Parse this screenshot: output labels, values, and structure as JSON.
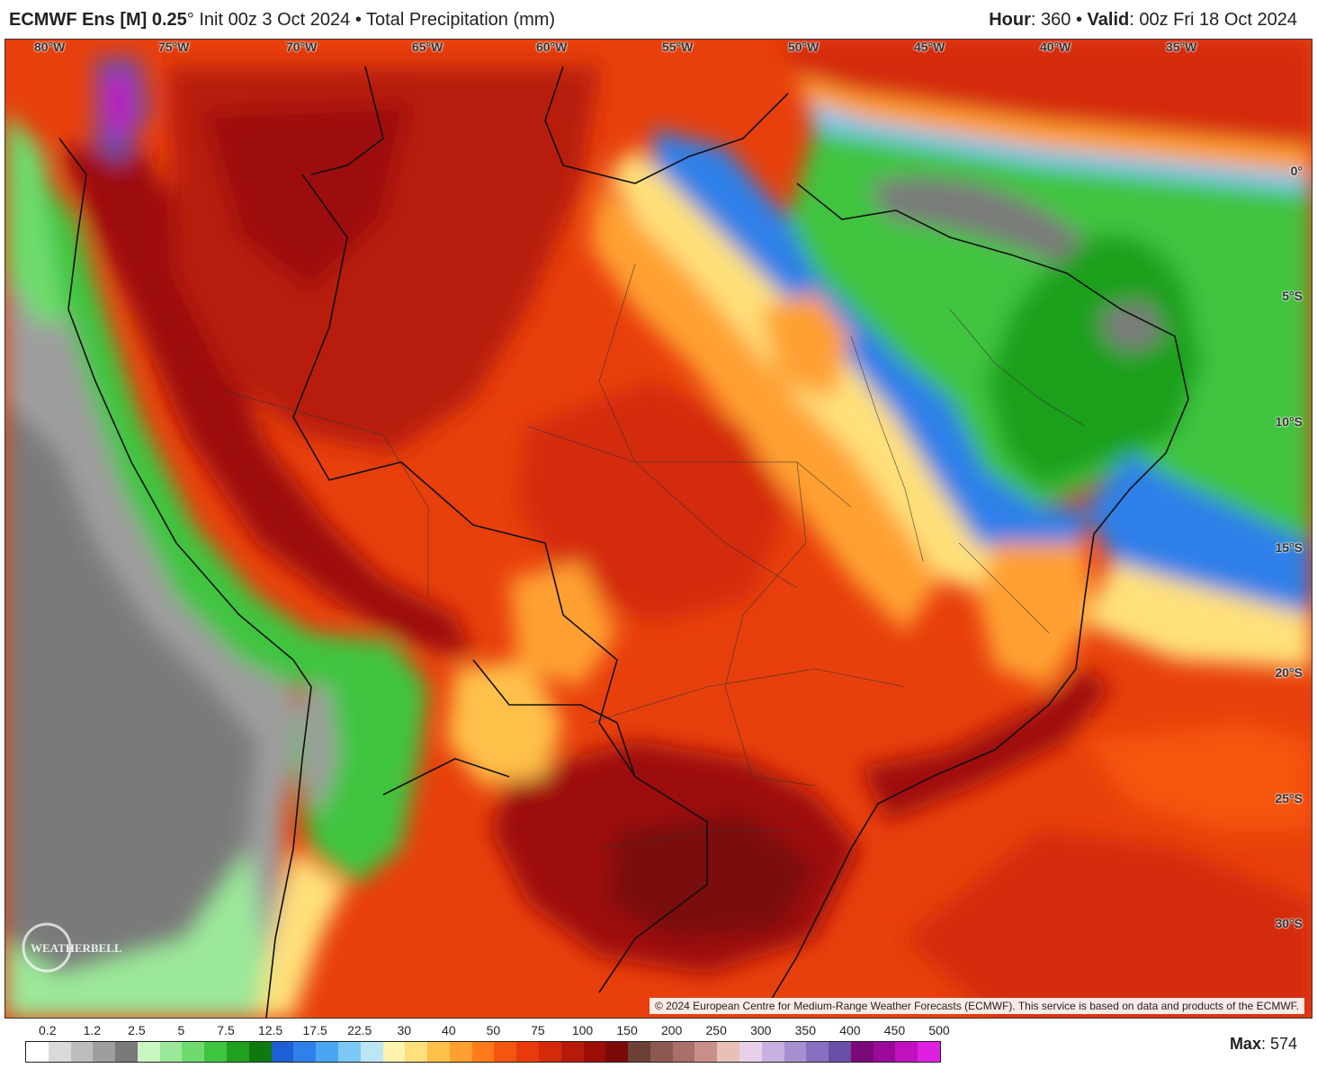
{
  "header": {
    "model": "ECMWF Ens [M] 0.25",
    "degree": "°",
    "init": "Init 00z 3 Oct 2024",
    "bullet": "•",
    "variable": "Total Precipitation (mm)",
    "hour_label": "Hour",
    "hour_value": ": 360",
    "valid_label": "Valid",
    "valid_value": ": 00z Fri 18 Oct 2024"
  },
  "map": {
    "lon_labels": [
      "80°W",
      "75°W",
      "70°W",
      "65°W",
      "60°W",
      "55°W",
      "50°W",
      "45°W",
      "40°W",
      "35°W"
    ],
    "lat_labels": [
      "0°",
      "5°S",
      "10°S",
      "15°S",
      "20°S",
      "25°S",
      "30°S"
    ],
    "copyright": "© 2024 European Centre for Medium-Range Weather Forecasts (ECMWF). This service is based on data and products of the ECMWF.",
    "logo_text": "WEATHERBELL"
  },
  "legend": {
    "ticks": [
      "0.2",
      "1.2",
      "2.5",
      "5",
      "7.5",
      "12.5",
      "17.5",
      "22.5",
      "30",
      "40",
      "50",
      "75",
      "100",
      "150",
      "200",
      "250",
      "300",
      "350",
      "400",
      "450",
      "500"
    ],
    "colors": [
      "#ffffff",
      "#d9d9d9",
      "#bdbdbd",
      "#9e9e9e",
      "#7a7a7a",
      "#c8f5c0",
      "#9be89a",
      "#6edb6e",
      "#3fc43f",
      "#1fa01f",
      "#0e7a0e",
      "#1f5fd6",
      "#2f80e8",
      "#48a6f2",
      "#7cc8f5",
      "#bde6f5",
      "#fff3b0",
      "#ffe07a",
      "#ffc04a",
      "#ffa030",
      "#ff7a1a",
      "#f55510",
      "#e83a0a",
      "#d42a0a",
      "#b81a0a",
      "#9e0e08",
      "#7a0a08",
      "#6b4038",
      "#8a5a50",
      "#a87068",
      "#c89088",
      "#e8c0b8",
      "#e8d0e8",
      "#c8b0e0",
      "#a890d0",
      "#8870c0",
      "#6850a8",
      "#7a0a7a",
      "#9a0a9a",
      "#c010c0",
      "#e020e0"
    ],
    "max_label": "Max",
    "max_value": ": 574"
  }
}
